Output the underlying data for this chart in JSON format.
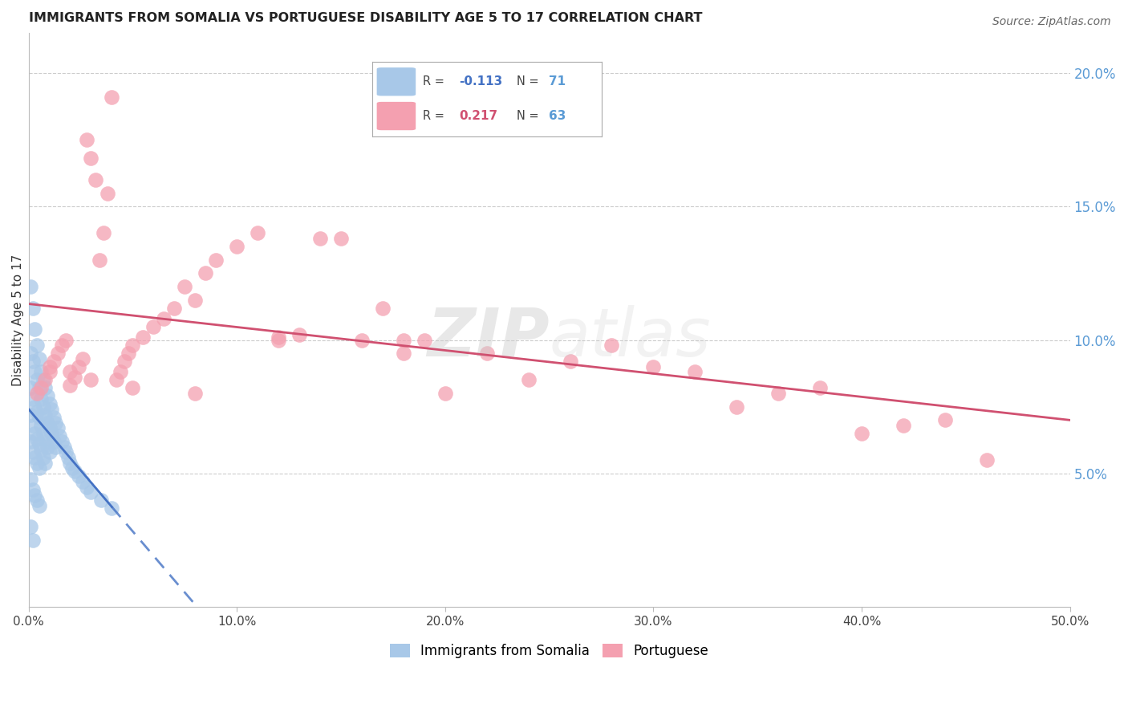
{
  "title": "IMMIGRANTS FROM SOMALIA VS PORTUGUESE DISABILITY AGE 5 TO 17 CORRELATION CHART",
  "source": "Source: ZipAtlas.com",
  "ylabel": "Disability Age 5 to 17",
  "xlim": [
    0.0,
    0.5
  ],
  "ylim": [
    0.0,
    0.215
  ],
  "right_axis_color": "#5b9bd5",
  "somalia_color": "#a8c8e8",
  "portuguese_color": "#f4a0b0",
  "somalia_line_color": "#4472c4",
  "portuguese_line_color": "#d05070",
  "somalia_R": -0.113,
  "somalia_N": 71,
  "portuguese_R": 0.217,
  "portuguese_N": 63,
  "legend_label_somalia": "Immigrants from Somalia",
  "legend_label_portuguese": "Portuguese",
  "somalia_x": [
    0.001,
    0.001,
    0.001,
    0.001,
    0.001,
    0.002,
    0.002,
    0.002,
    0.002,
    0.002,
    0.003,
    0.003,
    0.003,
    0.003,
    0.003,
    0.004,
    0.004,
    0.004,
    0.004,
    0.004,
    0.005,
    0.005,
    0.005,
    0.005,
    0.005,
    0.006,
    0.006,
    0.006,
    0.006,
    0.007,
    0.007,
    0.007,
    0.007,
    0.008,
    0.008,
    0.008,
    0.008,
    0.009,
    0.009,
    0.009,
    0.01,
    0.01,
    0.01,
    0.011,
    0.011,
    0.012,
    0.012,
    0.013,
    0.013,
    0.014,
    0.015,
    0.016,
    0.017,
    0.018,
    0.019,
    0.02,
    0.021,
    0.022,
    0.024,
    0.026,
    0.028,
    0.03,
    0.035,
    0.04,
    0.001,
    0.002,
    0.003,
    0.004,
    0.005,
    0.001,
    0.002
  ],
  "somalia_y": [
    0.12,
    0.095,
    0.082,
    0.072,
    0.062,
    0.112,
    0.092,
    0.078,
    0.068,
    0.058,
    0.104,
    0.088,
    0.075,
    0.065,
    0.056,
    0.098,
    0.085,
    0.073,
    0.063,
    0.054,
    0.093,
    0.082,
    0.071,
    0.061,
    0.052,
    0.088,
    0.078,
    0.068,
    0.059,
    0.085,
    0.075,
    0.065,
    0.056,
    0.082,
    0.072,
    0.063,
    0.054,
    0.079,
    0.069,
    0.06,
    0.076,
    0.067,
    0.058,
    0.074,
    0.065,
    0.071,
    0.062,
    0.069,
    0.06,
    0.067,
    0.064,
    0.062,
    0.06,
    0.058,
    0.056,
    0.054,
    0.052,
    0.051,
    0.049,
    0.047,
    0.045,
    0.043,
    0.04,
    0.037,
    0.048,
    0.044,
    0.042,
    0.04,
    0.038,
    0.03,
    0.025
  ],
  "portuguese_x": [
    0.004,
    0.006,
    0.008,
    0.01,
    0.012,
    0.014,
    0.016,
    0.018,
    0.02,
    0.022,
    0.024,
    0.026,
    0.028,
    0.03,
    0.032,
    0.034,
    0.036,
    0.038,
    0.04,
    0.042,
    0.044,
    0.046,
    0.048,
    0.05,
    0.055,
    0.06,
    0.065,
    0.07,
    0.075,
    0.08,
    0.085,
    0.09,
    0.1,
    0.11,
    0.12,
    0.13,
    0.14,
    0.15,
    0.16,
    0.17,
    0.18,
    0.19,
    0.2,
    0.22,
    0.24,
    0.26,
    0.28,
    0.3,
    0.32,
    0.34,
    0.36,
    0.38,
    0.4,
    0.42,
    0.44,
    0.46,
    0.01,
    0.02,
    0.03,
    0.05,
    0.08,
    0.12,
    0.18
  ],
  "portuguese_y": [
    0.08,
    0.082,
    0.085,
    0.088,
    0.092,
    0.095,
    0.098,
    0.1,
    0.083,
    0.086,
    0.09,
    0.093,
    0.175,
    0.168,
    0.16,
    0.13,
    0.14,
    0.155,
    0.191,
    0.085,
    0.088,
    0.092,
    0.095,
    0.098,
    0.101,
    0.105,
    0.108,
    0.112,
    0.12,
    0.115,
    0.125,
    0.13,
    0.135,
    0.14,
    0.1,
    0.102,
    0.138,
    0.138,
    0.1,
    0.112,
    0.1,
    0.1,
    0.08,
    0.095,
    0.085,
    0.092,
    0.098,
    0.09,
    0.088,
    0.075,
    0.08,
    0.082,
    0.065,
    0.068,
    0.07,
    0.055,
    0.09,
    0.088,
    0.085,
    0.082,
    0.08,
    0.101,
    0.095
  ],
  "background_color": "#ffffff",
  "grid_color": "#cccccc",
  "watermark_color": "#cccccc"
}
